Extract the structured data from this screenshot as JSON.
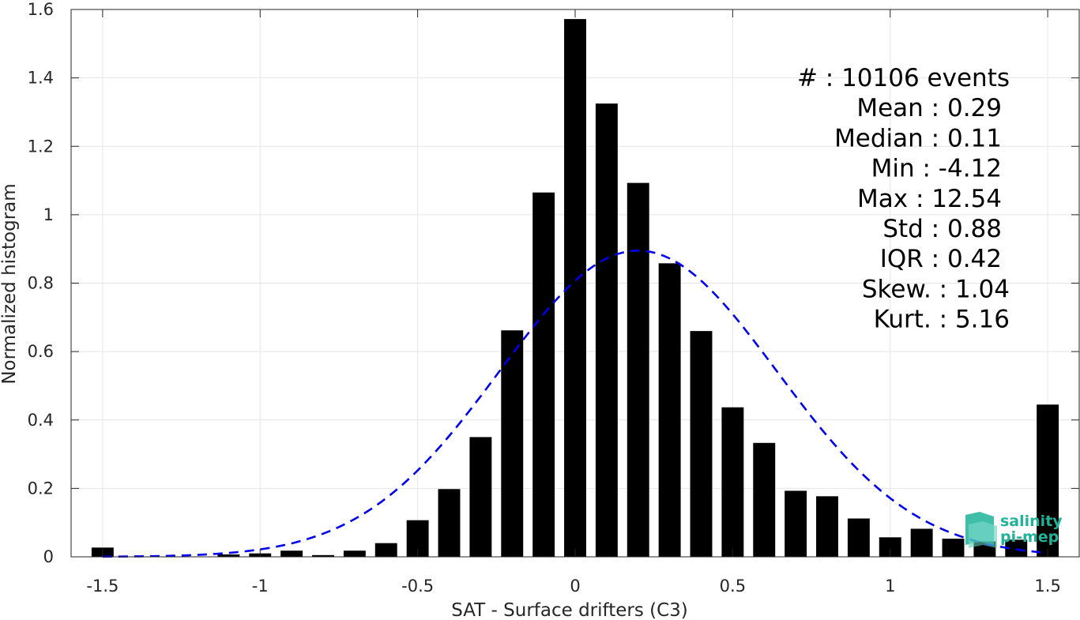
{
  "chart_data": {
    "type": "bar",
    "xlabel": "SAT - Surface drifters (C3)",
    "ylabel": "Normalized histogram",
    "xlim": [
      -1.6,
      1.6
    ],
    "ylim": [
      0,
      1.6
    ],
    "grid": true,
    "x_ticks": [
      -1.5,
      -1,
      -0.5,
      0,
      0.5,
      1,
      1.5
    ],
    "x_tick_labels": [
      "-1.5",
      "-1",
      "-0.5",
      "0",
      "0.5",
      "1",
      "1.5"
    ],
    "y_ticks": [
      0,
      0.2,
      0.4,
      0.6,
      0.8,
      1,
      1.2,
      1.4,
      1.6
    ],
    "y_tick_labels": [
      "0",
      "0.2",
      "0.4",
      "0.6",
      "0.8",
      "1",
      "1.2",
      "1.4",
      "1.6"
    ],
    "bar_width": 0.07,
    "bar_color": "#000000",
    "x": [
      -1.5,
      -1.4,
      -1.3,
      -1.2,
      -1.1,
      -1.0,
      -0.9,
      -0.8,
      -0.7,
      -0.6,
      -0.5,
      -0.4,
      -0.3,
      -0.2,
      -0.1,
      0.0,
      0.1,
      0.2,
      0.3,
      0.4,
      0.5,
      0.6,
      0.7,
      0.8,
      0.9,
      1.0,
      1.1,
      1.2,
      1.3,
      1.4,
      1.5
    ],
    "values": [
      0.027,
      0.0,
      0.0,
      0.0,
      0.007,
      0.01,
      0.018,
      0.005,
      0.018,
      0.04,
      0.107,
      0.198,
      0.35,
      0.662,
      1.065,
      1.572,
      1.325,
      1.093,
      0.858,
      0.66,
      0.437,
      0.333,
      0.193,
      0.177,
      0.112,
      0.057,
      0.082,
      0.053,
      0.045,
      0.05,
      0.445
    ],
    "fit_curve": {
      "type": "normal",
      "mean": 0.2,
      "std": 0.44,
      "peak": 0.895,
      "x_range": [
        -1.5,
        1.5
      ],
      "color": "#0000ee",
      "style": "dashed"
    },
    "annotation_lines": [
      "#  : 10106 events",
      "Mean : 0.29",
      "Median : 0.11",
      "Min : -4.12",
      "Max : 12.54",
      "Std : 0.88",
      "IQR : 0.42",
      "Skew. : 1.04",
      "Kurt. : 5.16"
    ]
  },
  "logo": {
    "line1": "salinity",
    "line2": "pi-mep",
    "color": "#1fb39a"
  }
}
